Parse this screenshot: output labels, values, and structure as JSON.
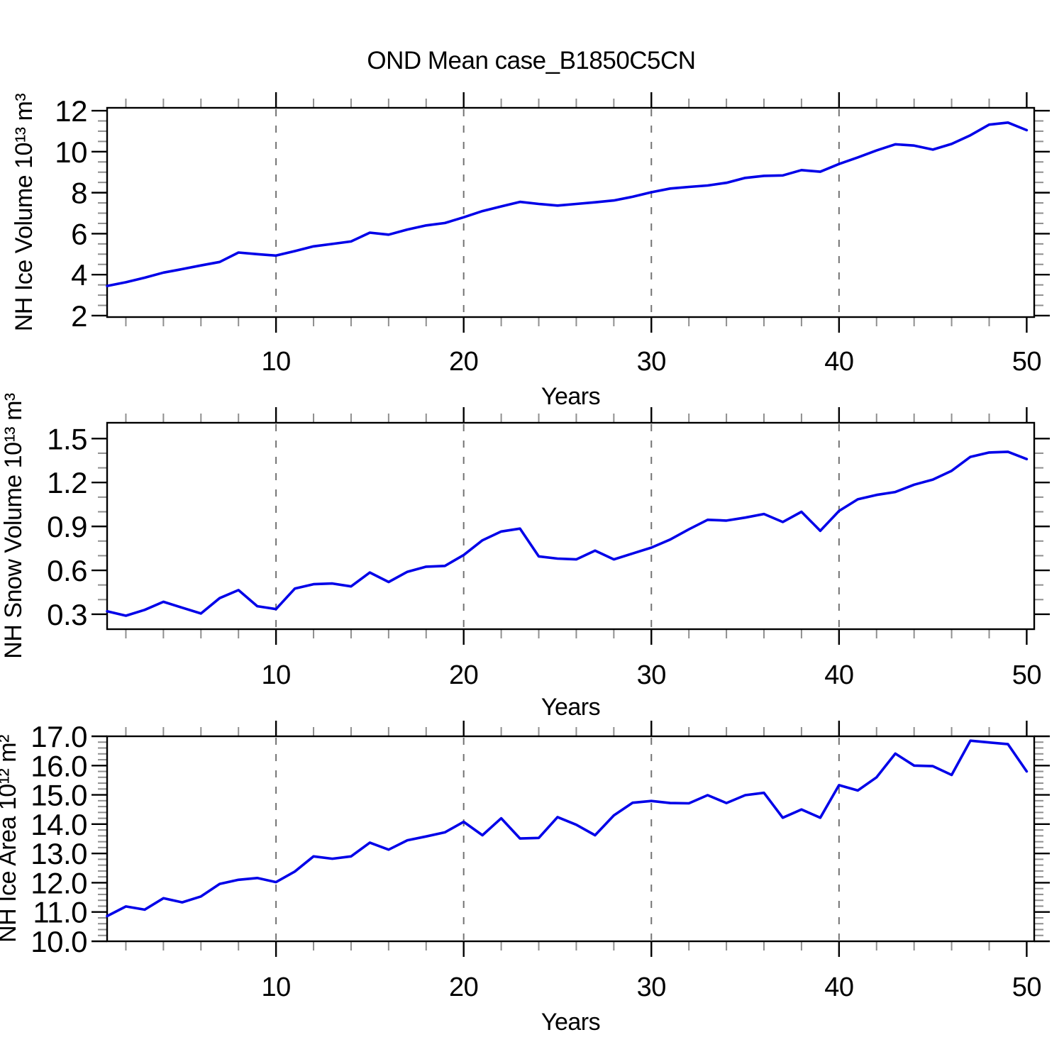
{
  "title": "OND Mean case_B1850C5CN",
  "xlabel": "Years",
  "xticks": {
    "values": [
      10,
      20,
      30,
      40,
      50
    ],
    "labels": [
      "10",
      "20",
      "30",
      "40",
      "50"
    ]
  },
  "grid_x": [
    10,
    20,
    30,
    40
  ],
  "colors": {
    "line": "#0000e8",
    "axis": "#000000",
    "grid": "#737373",
    "minor_tick": "#8f8f8f"
  },
  "chart_data": [
    {
      "type": "line",
      "name": "nh-ice-volume",
      "ylabel": "NH Ice Volume 10¹³ m³",
      "xlabel": "Years",
      "xlim": [
        1,
        50.4
      ],
      "ylim": [
        1.93,
        12.14
      ],
      "yticks": {
        "values": [
          2,
          4,
          6,
          8,
          10,
          12
        ],
        "labels": [
          "2",
          "4",
          "6",
          "8",
          "10",
          "12"
        ]
      },
      "y_minor_step": 0.5,
      "x": [
        1,
        2,
        3,
        4,
        5,
        6,
        7,
        8,
        9,
        10,
        11,
        12,
        13,
        14,
        15,
        16,
        17,
        18,
        19,
        20,
        21,
        22,
        23,
        24,
        25,
        26,
        27,
        28,
        29,
        30,
        31,
        32,
        33,
        34,
        35,
        36,
        37,
        38,
        39,
        40,
        41,
        42,
        43,
        44,
        45,
        46,
        47,
        48,
        49,
        50
      ],
      "values": [
        3.45,
        3.63,
        3.85,
        4.1,
        4.27,
        4.45,
        4.62,
        5.08,
        5.0,
        4.93,
        5.15,
        5.38,
        5.5,
        5.62,
        6.05,
        5.95,
        6.2,
        6.4,
        6.52,
        6.8,
        7.1,
        7.33,
        7.55,
        7.45,
        7.37,
        7.45,
        7.53,
        7.62,
        7.8,
        8.02,
        8.2,
        8.28,
        8.35,
        8.48,
        8.72,
        8.82,
        8.84,
        9.1,
        9.02,
        9.4,
        9.72,
        10.06,
        10.36,
        10.3,
        10.1,
        10.38,
        10.8,
        11.32,
        11.42,
        11.05
      ]
    },
    {
      "type": "line",
      "name": "nh-snow-volume",
      "ylabel": "NH Snow Volume 10¹³ m³",
      "xlabel": "Years",
      "xlim": [
        1,
        50.4
      ],
      "ylim": [
        0.198,
        1.608
      ],
      "yticks": {
        "values": [
          0.3,
          0.6,
          0.9,
          1.2,
          1.5
        ],
        "labels": [
          "0.3",
          "0.6",
          "0.9",
          "1.2",
          "1.5"
        ]
      },
      "y_minor_step": 0.1,
      "x": [
        1,
        2,
        3,
        4,
        5,
        6,
        7,
        8,
        9,
        10,
        11,
        12,
        13,
        14,
        15,
        16,
        17,
        18,
        19,
        20,
        21,
        22,
        23,
        24,
        25,
        26,
        27,
        28,
        29,
        30,
        31,
        32,
        33,
        34,
        35,
        36,
        37,
        38,
        39,
        40,
        41,
        42,
        43,
        44,
        45,
        46,
        47,
        48,
        49,
        50
      ],
      "values": [
        0.32,
        0.29,
        0.33,
        0.385,
        0.345,
        0.305,
        0.41,
        0.465,
        0.355,
        0.335,
        0.475,
        0.505,
        0.51,
        0.49,
        0.585,
        0.52,
        0.59,
        0.625,
        0.63,
        0.705,
        0.805,
        0.865,
        0.885,
        0.695,
        0.68,
        0.675,
        0.735,
        0.675,
        0.715,
        0.755,
        0.81,
        0.88,
        0.945,
        0.94,
        0.96,
        0.985,
        0.93,
        1.0,
        0.87,
        1.005,
        1.085,
        1.115,
        1.135,
        1.185,
        1.22,
        1.28,
        1.375,
        1.405,
        1.41,
        1.36
      ]
    },
    {
      "type": "line",
      "name": "nh-ice-area",
      "ylabel": "NH Ice Area 10¹² m²",
      "xlabel": "Years",
      "xlim": [
        1,
        50.4
      ],
      "ylim": [
        10.0,
        17.0
      ],
      "yticks": {
        "values": [
          10,
          11,
          12,
          13,
          14,
          15,
          16,
          17
        ],
        "labels": [
          "10.0",
          "11.0",
          "12.0",
          "13.0",
          "14.0",
          "15.0",
          "16.0",
          "17.0"
        ]
      },
      "y_minor_step": 0.2,
      "x": [
        1,
        2,
        3,
        4,
        5,
        6,
        7,
        8,
        9,
        10,
        11,
        12,
        13,
        14,
        15,
        16,
        17,
        18,
        19,
        20,
        21,
        22,
        23,
        24,
        25,
        26,
        27,
        28,
        29,
        30,
        31,
        32,
        33,
        34,
        35,
        36,
        37,
        38,
        39,
        40,
        41,
        42,
        43,
        44,
        45,
        46,
        47,
        48,
        49,
        50
      ],
      "values": [
        10.86,
        11.19,
        11.08,
        11.47,
        11.33,
        11.53,
        11.96,
        12.1,
        12.16,
        12.02,
        12.38,
        12.9,
        12.82,
        12.9,
        13.37,
        13.13,
        13.45,
        13.58,
        13.72,
        14.08,
        13.62,
        14.2,
        13.51,
        13.53,
        14.24,
        13.98,
        13.62,
        14.3,
        14.73,
        14.79,
        14.72,
        14.71,
        14.99,
        14.72,
        14.99,
        15.07,
        14.22,
        14.5,
        14.22,
        15.33,
        15.15,
        15.6,
        16.41,
        16.0,
        15.98,
        15.68,
        16.85,
        16.79,
        16.73,
        15.8
      ]
    }
  ]
}
